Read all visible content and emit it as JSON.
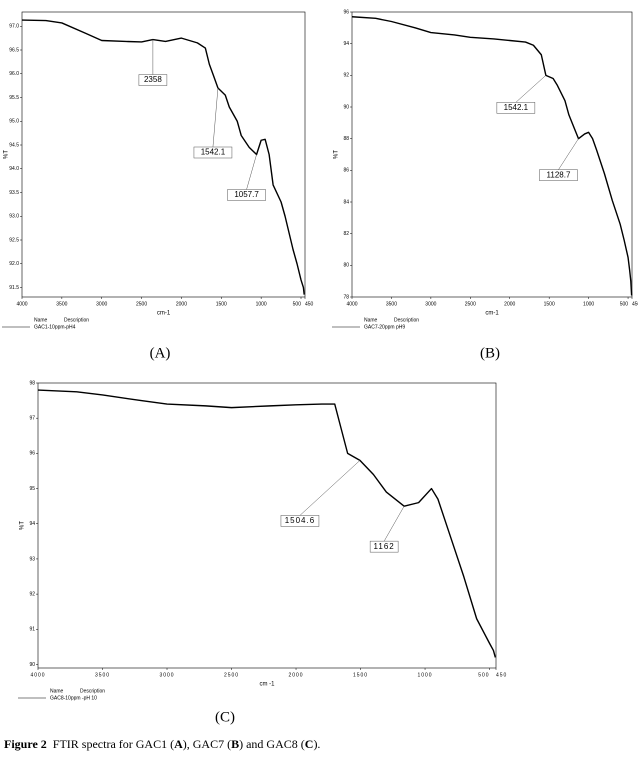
{
  "chart_data": [
    {
      "type": "line",
      "panel_label": "(A)",
      "x_label": "cm-1",
      "y_label": "%T",
      "legend_columns": [
        "Name",
        "Description"
      ],
      "xlim": [
        4000,
        450
      ],
      "ylim": [
        91.3,
        97.3
      ],
      "xticks": [
        4000,
        3500,
        3000,
        2500,
        2000,
        1500,
        1000,
        500,
        450
      ],
      "yticks": [
        {
          "value": 91.5,
          "label": "91.5"
        },
        {
          "value": 92,
          "label": "92.0"
        },
        {
          "value": 92.5,
          "label": "92.5"
        },
        {
          "value": 93,
          "label": "93.0"
        },
        {
          "value": 93.5,
          "label": "93.5"
        },
        {
          "value": 94,
          "label": "94.0"
        },
        {
          "value": 94.5,
          "label": "94.5"
        },
        {
          "value": 95,
          "label": "95.0"
        },
        {
          "value": 95.5,
          "label": "95.5"
        },
        {
          "value": 96,
          "label": "96.0"
        },
        {
          "value": 96.5,
          "label": "96.5"
        },
        {
          "value": 97,
          "label": "97.0"
        }
      ],
      "series": [
        {
          "name": "GAC1-10ppm-pH4",
          "color": "#000000",
          "x": [
            4000,
            3700,
            3500,
            3200,
            3000,
            2700,
            2500,
            2358,
            2200,
            2000,
            1800,
            1700,
            1650,
            1600,
            1542.1,
            1450,
            1400,
            1300,
            1250,
            1150,
            1057.7,
            1000,
            950,
            900,
            850,
            750,
            700,
            600,
            550,
            500,
            470,
            460
          ],
          "values": [
            97.13,
            97.12,
            97.07,
            96.85,
            96.7,
            96.68,
            96.67,
            96.72,
            96.68,
            96.75,
            96.65,
            96.54,
            96.2,
            95.97,
            95.7,
            95.55,
            95.3,
            95.0,
            94.7,
            94.45,
            94.3,
            94.6,
            94.62,
            94.3,
            93.66,
            93.3,
            93.0,
            92.3,
            92.0,
            91.66,
            91.5,
            91.35
          ]
        }
      ],
      "annotations": [
        {
          "x": 2358,
          "y": 96.72,
          "text": "2358"
        },
        {
          "x": 1542.1,
          "y": 95.7,
          "text": "1542.1"
        },
        {
          "x": 1057.7,
          "y": 94.3,
          "text": "1057.7"
        }
      ]
    },
    {
      "type": "line",
      "panel_label": "(B)",
      "x_label": "cm-1",
      "y_label": "%T",
      "legend_columns": [
        "Name",
        "Description"
      ],
      "xlim": [
        4000,
        450
      ],
      "ylim": [
        78,
        96
      ],
      "xticks": [
        4000,
        3500,
        3000,
        2500,
        2000,
        1500,
        1000,
        500,
        450
      ],
      "yticks": [
        78,
        80,
        82,
        84,
        86,
        88,
        90,
        92,
        94,
        96
      ],
      "series": [
        {
          "name": "GAC7-20ppm pH9",
          "color": "#000000",
          "x": [
            4000,
            3700,
            3500,
            3200,
            3000,
            2700,
            2500,
            2200,
            2000,
            1800,
            1700,
            1600,
            1542.1,
            1450,
            1400,
            1300,
            1250,
            1128.7,
            1050,
            1000,
            950,
            900,
            800,
            700,
            600,
            550,
            500,
            480,
            465,
            455
          ],
          "values": [
            95.7,
            95.6,
            95.4,
            95.0,
            94.7,
            94.55,
            94.4,
            94.3,
            94.2,
            94.1,
            93.9,
            93.3,
            92.0,
            91.8,
            91.4,
            90.4,
            89.5,
            88.0,
            88.3,
            88.4,
            88.0,
            87.3,
            85.8,
            84.1,
            82.6,
            81.6,
            80.5,
            79.7,
            79.0,
            78.1
          ]
        }
      ],
      "annotations": [
        {
          "x": 1542.1,
          "y": 92.0,
          "text": "1542.1"
        },
        {
          "x": 1128.7,
          "y": 88.0,
          "text": "1128.7"
        }
      ]
    },
    {
      "type": "line",
      "panel_label": "(C)",
      "x_label": "cm -1",
      "y_label": "%T",
      "legend_columns": [
        "Name",
        "Description"
      ],
      "xlim": [
        4000,
        450
      ],
      "ylim": [
        89.9,
        98.0
      ],
      "xticks": [
        4000,
        3500,
        3000,
        2500,
        2000,
        1500,
        1000,
        500,
        450
      ],
      "yticks": [
        90,
        91,
        92,
        93,
        94,
        95,
        96,
        97,
        98
      ],
      "series": [
        {
          "name": "GAC8-10ppm -pH 10",
          "color": "#000000",
          "x": [
            4000,
            3700,
            3500,
            3200,
            3000,
            2700,
            2500,
            2200,
            2000,
            1800,
            1700,
            1650,
            1600,
            1504.6,
            1400,
            1300,
            1162,
            1050,
            950,
            900,
            800,
            700,
            600,
            500,
            470,
            455
          ],
          "values": [
            97.8,
            97.75,
            97.66,
            97.5,
            97.4,
            97.35,
            97.3,
            97.35,
            97.38,
            97.4,
            97.4,
            96.7,
            96.0,
            95.8,
            95.4,
            94.9,
            94.5,
            94.6,
            95.0,
            94.7,
            93.6,
            92.5,
            91.3,
            90.6,
            90.4,
            90.2
          ]
        }
      ],
      "annotations": [
        {
          "x": 1504.6,
          "y": 95.8,
          "text": "1504.6"
        },
        {
          "x": 1162,
          "y": 94.5,
          "text": "1162"
        }
      ]
    }
  ],
  "caption": [
    "Figure 2",
    "FTIR spectra for GAC1 (",
    "A",
    "), GAC7 (",
    "B",
    ") and GAC8 (",
    "C",
    ")."
  ]
}
